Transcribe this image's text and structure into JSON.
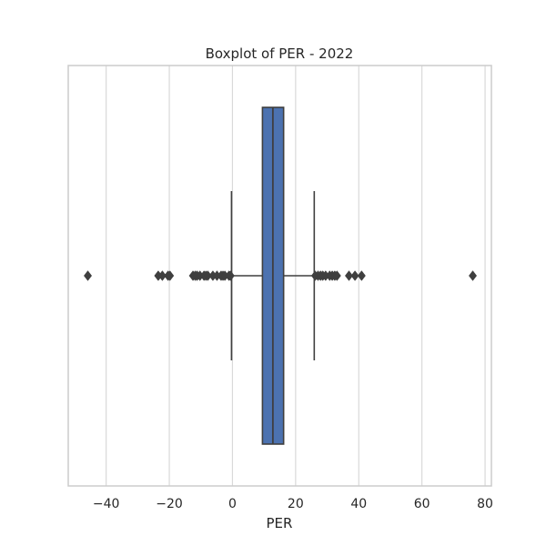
{
  "chart_data": {
    "type": "boxplot",
    "title": "Boxplot of PER - 2022",
    "xlabel": "PER",
    "ylabel": "",
    "orientation": "horizontal",
    "xlim": [
      -52,
      82
    ],
    "xticks": [
      -40,
      -20,
      0,
      20,
      40,
      60,
      80
    ],
    "grid": "vertical",
    "box": {
      "whisker_low": -0.3,
      "q1": 9.5,
      "median": 12.8,
      "q3": 16.2,
      "whisker_high": 25.9
    },
    "outliers": [
      -45.8,
      -23.5,
      -22.2,
      -20.4,
      -19.8,
      -12.5,
      -11.8,
      -11.2,
      -10.3,
      -9.0,
      -8.4,
      -7.8,
      -6.2,
      -4.9,
      -3.6,
      -3.0,
      -2.4,
      -1.1,
      -0.6,
      26.2,
      27.1,
      27.9,
      28.6,
      29.5,
      30.8,
      31.6,
      32.4,
      33.1,
      36.9,
      38.8,
      40.9,
      76.1
    ],
    "color": "#4c72b0",
    "line_color": "#3f3f3f"
  }
}
